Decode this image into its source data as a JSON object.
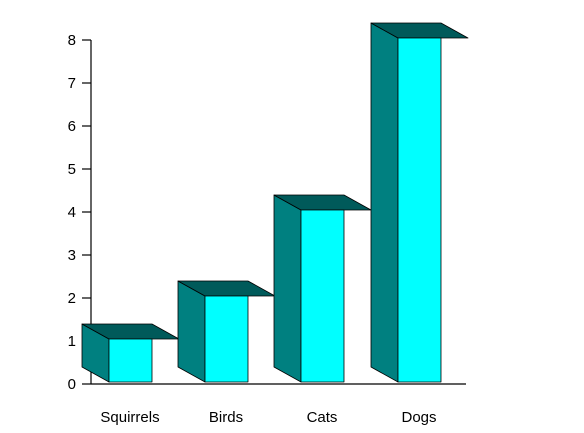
{
  "chart_data": {
    "type": "bar",
    "style": "3d",
    "categories": [
      "Squirrels",
      "Birds",
      "Cats",
      "Dogs"
    ],
    "values": [
      1,
      2,
      4,
      8
    ],
    "yticks": [
      0,
      1,
      2,
      3,
      4,
      5,
      6,
      7,
      8
    ],
    "ylim": [
      0,
      8
    ],
    "title": "",
    "xlabel": "",
    "ylabel": "",
    "grid": false,
    "colors": {
      "front": "#00ffff",
      "side": "#008080",
      "top": "#005a5a",
      "axis": "#000000"
    }
  }
}
